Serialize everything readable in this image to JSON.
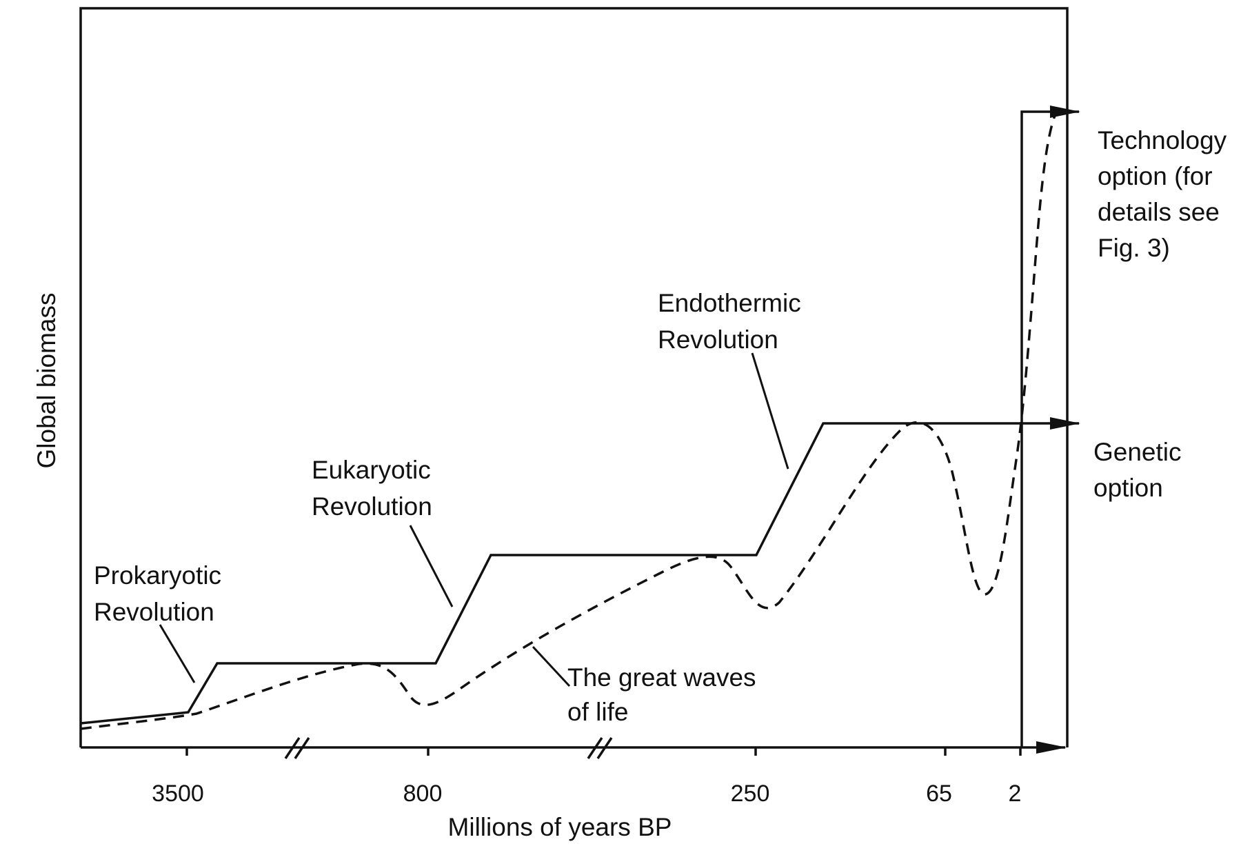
{
  "figure": {
    "y_axis_title": "Global biomass",
    "x_axis_title": "Millions of years BP",
    "x_ticks": [
      "3500",
      "800",
      "250",
      "65",
      "2"
    ],
    "labels": {
      "prokaryotic": [
        "Prokaryotic",
        "Revolution"
      ],
      "eukaryotic": [
        "Eukaryotic",
        "Revolution"
      ],
      "endothermic": [
        "Endothermic",
        "Revolution"
      ],
      "great_waves": [
        "The great waves",
        "of life"
      ],
      "technology": [
        "Technology",
        "option (for",
        "details see",
        "Fig. 3)"
      ],
      "genetic": [
        "Genetic",
        "option"
      ]
    },
    "colors": {
      "ink": "#111111",
      "background": "#ffffff"
    }
  }
}
